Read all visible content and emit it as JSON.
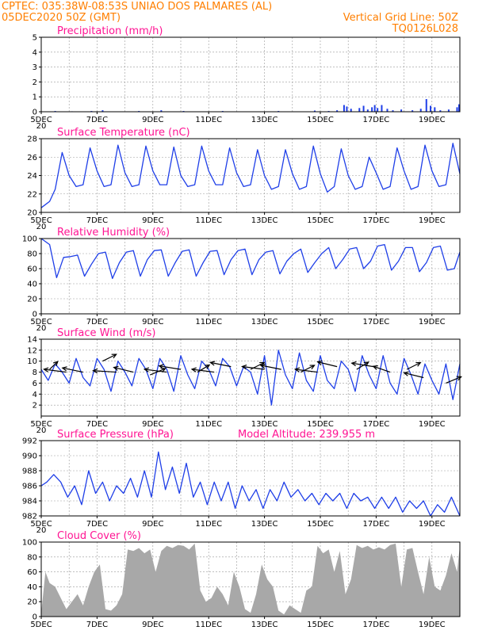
{
  "header": {
    "line1_left": "CPTEC:   035:38W-08:53S   UNIAO DOS PALMARES (AL)",
    "line2_left": "05DEC2020 50Z (GMT)",
    "line2_right": "Vertical Grid Line: 50Z",
    "line3_right": "TQ0126L028"
  },
  "colors": {
    "header": "#ff7f00",
    "panel_title": "#ff1493",
    "series": "#1f3fe8",
    "cloud": "#a8a8a8",
    "wind_arrow": "#000000"
  },
  "x_axis": {
    "day_start": 5,
    "day_end": 20,
    "tick_labels": [
      {
        "day": 5,
        "label": "5DEC"
      },
      {
        "day": 7,
        "label": "7DEC"
      },
      {
        "day": 9,
        "label": "9DEC"
      },
      {
        "day": 11,
        "label": "11DEC"
      },
      {
        "day": 13,
        "label": "13DEC"
      },
      {
        "day": 15,
        "label": "15DEC"
      },
      {
        "day": 17,
        "label": "17DEC"
      },
      {
        "day": 19,
        "label": "19DEC"
      }
    ],
    "year_stub": "20"
  },
  "chart_data": [
    {
      "type": "bar",
      "id": "precip",
      "title": "Precipitation  (mm/h)",
      "ylim": [
        0,
        5
      ],
      "yticks": [
        0,
        1,
        2,
        3,
        4,
        5
      ],
      "grid": true,
      "x_day": [
        5.5,
        6.1,
        6.8,
        7.2,
        8.5,
        9.3,
        10.1,
        11.5,
        13.5,
        14.8,
        15.3,
        15.6,
        15.85,
        15.95,
        16.1,
        16.4,
        16.55,
        16.7,
        16.85,
        16.95,
        17.05,
        17.2,
        17.4,
        17.6,
        17.9,
        18.3,
        18.6,
        18.8,
        18.95,
        19.1,
        19.3,
        19.6,
        19.9,
        19.97
      ],
      "values": [
        0.05,
        0.03,
        0.05,
        0.1,
        0.05,
        0.1,
        0.05,
        0.05,
        0.05,
        0.08,
        0.05,
        0.1,
        0.45,
        0.35,
        0.2,
        0.25,
        0.4,
        0.15,
        0.3,
        0.45,
        0.25,
        0.45,
        0.2,
        0.1,
        0.15,
        0.1,
        0.2,
        0.85,
        0.4,
        0.3,
        0.1,
        0.15,
        0.3,
        0.5
      ]
    },
    {
      "type": "line",
      "id": "temperature",
      "title": "Surface Temperature (nC)",
      "ylim": [
        20,
        28
      ],
      "yticks": [
        20,
        22,
        24,
        26,
        28
      ],
      "grid": true,
      "x_day": [
        5.0,
        5.3,
        5.5,
        5.75,
        6.0,
        6.25,
        6.5,
        6.75,
        7.0,
        7.25,
        7.5,
        7.75,
        8.0,
        8.25,
        8.5,
        8.75,
        9.0,
        9.25,
        9.5,
        9.75,
        10.0,
        10.25,
        10.5,
        10.75,
        11.0,
        11.25,
        11.5,
        11.75,
        12.0,
        12.25,
        12.5,
        12.75,
        13.0,
        13.25,
        13.5,
        13.75,
        14.0,
        14.25,
        14.5,
        14.75,
        15.0,
        15.25,
        15.5,
        15.75,
        16.0,
        16.25,
        16.5,
        16.75,
        17.0,
        17.25,
        17.5,
        17.75,
        18.0,
        18.25,
        18.5,
        18.75,
        19.0,
        19.25,
        19.5,
        19.75,
        20.0
      ],
      "values": [
        20.5,
        21.2,
        22.5,
        26.5,
        24.0,
        22.8,
        23.0,
        27.0,
        24.5,
        22.8,
        23.0,
        27.3,
        24.3,
        22.8,
        23.0,
        27.2,
        24.5,
        23.0,
        23.0,
        27.1,
        24.0,
        22.8,
        23.0,
        27.2,
        24.5,
        23.0,
        23.0,
        27.0,
        24.3,
        22.8,
        23.0,
        26.8,
        24.0,
        22.5,
        22.8,
        26.8,
        24.2,
        22.5,
        22.8,
        27.2,
        24.2,
        22.2,
        22.8,
        26.9,
        24.0,
        22.5,
        22.8,
        26.0,
        24.3,
        22.5,
        22.8,
        27.0,
        24.5,
        22.5,
        22.8,
        27.3,
        24.5,
        22.8,
        23.0,
        27.5,
        24.2
      ]
    },
    {
      "type": "line",
      "id": "humidity",
      "title": "Relative Humidity (%)",
      "ylim": [
        0,
        100
      ],
      "yticks": [
        0,
        20,
        40,
        60,
        80,
        100
      ],
      "grid": true,
      "x_day": [
        5.0,
        5.3,
        5.55,
        5.8,
        6.05,
        6.3,
        6.55,
        6.8,
        7.05,
        7.3,
        7.55,
        7.8,
        8.05,
        8.3,
        8.55,
        8.8,
        9.05,
        9.3,
        9.55,
        9.8,
        10.05,
        10.3,
        10.55,
        10.8,
        11.05,
        11.3,
        11.55,
        11.8,
        12.05,
        12.3,
        12.55,
        12.8,
        13.05,
        13.3,
        13.55,
        13.8,
        14.05,
        14.3,
        14.55,
        14.8,
        15.05,
        15.3,
        15.55,
        15.8,
        16.05,
        16.3,
        16.55,
        16.8,
        17.05,
        17.3,
        17.55,
        17.8,
        18.05,
        18.3,
        18.55,
        18.8,
        19.05,
        19.3,
        19.55,
        19.8,
        20.0
      ],
      "values": [
        100,
        92,
        48,
        75,
        76,
        78,
        50,
        66,
        80,
        82,
        47,
        68,
        82,
        84,
        50,
        72,
        84,
        85,
        50,
        68,
        83,
        85,
        50,
        68,
        83,
        84,
        52,
        72,
        84,
        86,
        52,
        72,
        82,
        84,
        53,
        70,
        80,
        86,
        55,
        68,
        80,
        88,
        60,
        72,
        86,
        88,
        60,
        70,
        90,
        92,
        58,
        70,
        88,
        88,
        56,
        68,
        88,
        90,
        58,
        60,
        82
      ]
    },
    {
      "type": "line",
      "id": "wind",
      "title": "Surface Wind  (m/s)",
      "ylim": [
        0,
        14
      ],
      "yticks": [
        2,
        4,
        6,
        8,
        10,
        12,
        14
      ],
      "grid": true,
      "x_day": [
        5.0,
        5.25,
        5.5,
        5.75,
        6.0,
        6.25,
        6.5,
        6.75,
        7.0,
        7.25,
        7.5,
        7.75,
        8.0,
        8.25,
        8.5,
        8.75,
        9.0,
        9.25,
        9.5,
        9.75,
        10.0,
        10.25,
        10.5,
        10.75,
        11.0,
        11.25,
        11.5,
        11.75,
        12.0,
        12.25,
        12.5,
        12.75,
        13.0,
        13.25,
        13.5,
        13.75,
        14.0,
        14.25,
        14.5,
        14.75,
        15.0,
        15.25,
        15.5,
        15.75,
        16.0,
        16.25,
        16.5,
        16.75,
        17.0,
        17.25,
        17.5,
        17.75,
        18.0,
        18.25,
        18.5,
        18.75,
        19.0,
        19.25,
        19.5,
        19.75,
        20.0
      ],
      "values": [
        8.5,
        6.5,
        9.5,
        8.0,
        6.0,
        10.5,
        7.0,
        5.5,
        10.5,
        8.5,
        4.5,
        10.0,
        8.0,
        5.5,
        10.5,
        8.5,
        5.0,
        10.5,
        8.5,
        4.5,
        11.0,
        7.5,
        5.0,
        10.0,
        8.5,
        5.5,
        10.5,
        9.0,
        5.5,
        9.0,
        8.0,
        4.0,
        11.0,
        2.0,
        12.0,
        7.5,
        5.0,
        11.5,
        6.5,
        4.5,
        11.0,
        6.5,
        5.0,
        10.0,
        8.5,
        4.5,
        11.0,
        7.5,
        5.0,
        11.0,
        6.0,
        4.0,
        10.5,
        7.5,
        4.0,
        9.5,
        6.5,
        4.0,
        9.5,
        3.0,
        9.5
      ],
      "arrows": [
        {
          "day": 5.3,
          "speed": 8.5,
          "dir": 200
        },
        {
          "day": 5.9,
          "speed": 8.0,
          "dir": 110
        },
        {
          "day": 6.5,
          "speed": 8.0,
          "dir": 120
        },
        {
          "day": 7.2,
          "speed": 10.0,
          "dir": 215
        },
        {
          "day": 7.7,
          "speed": 8.0,
          "dir": 100
        },
        {
          "day": 8.3,
          "speed": 8.0,
          "dir": 125
        },
        {
          "day": 8.9,
          "speed": 7.5,
          "dir": 220
        },
        {
          "day": 9.5,
          "speed": 8.0,
          "dir": 110
        },
        {
          "day": 10.0,
          "speed": 8.5,
          "dir": 115
        },
        {
          "day": 10.6,
          "speed": 8.0,
          "dir": 210
        },
        {
          "day": 11.2,
          "speed": 8.0,
          "dir": 110
        },
        {
          "day": 11.8,
          "speed": 9.0,
          "dir": 120
        },
        {
          "day": 12.5,
          "speed": 8.5,
          "dir": 215
        },
        {
          "day": 13.0,
          "speed": 8.5,
          "dir": 110
        },
        {
          "day": 13.6,
          "speed": 8.5,
          "dir": 120
        },
        {
          "day": 14.3,
          "speed": 8.0,
          "dir": 215
        },
        {
          "day": 14.9,
          "speed": 8.0,
          "dir": 110
        },
        {
          "day": 15.6,
          "speed": 9.0,
          "dir": 125
        },
        {
          "day": 16.3,
          "speed": 8.5,
          "dir": 210
        },
        {
          "day": 16.9,
          "speed": 9.0,
          "dir": 115
        },
        {
          "day": 17.5,
          "speed": 8.0,
          "dir": 135
        },
        {
          "day": 18.1,
          "speed": 8.5,
          "dir": 215
        },
        {
          "day": 18.7,
          "speed": 7.0,
          "dir": 125
        },
        {
          "day": 19.5,
          "speed": 6.0,
          "dir": 220
        }
      ]
    },
    {
      "type": "line",
      "id": "pressure",
      "title": "Surface Pressure (hPa)",
      "subtitle": "Model Altitude: 239.955  m",
      "ylim": [
        982,
        992
      ],
      "yticks": [
        982,
        984,
        986,
        988,
        990,
        992
      ],
      "grid": true,
      "x_day": [
        5.0,
        5.2,
        5.45,
        5.7,
        5.95,
        6.2,
        6.45,
        6.7,
        6.95,
        7.2,
        7.45,
        7.7,
        7.95,
        8.2,
        8.45,
        8.7,
        8.95,
        9.2,
        9.45,
        9.7,
        9.95,
        10.2,
        10.45,
        10.7,
        10.95,
        11.2,
        11.45,
        11.7,
        11.95,
        12.2,
        12.45,
        12.7,
        12.95,
        13.2,
        13.45,
        13.7,
        13.95,
        14.2,
        14.45,
        14.7,
        14.95,
        15.2,
        15.45,
        15.7,
        15.95,
        16.2,
        16.45,
        16.7,
        16.95,
        17.2,
        17.45,
        17.7,
        17.95,
        18.2,
        18.45,
        18.7,
        18.95,
        19.2,
        19.45,
        19.7,
        20.0
      ],
      "values": [
        986.0,
        986.5,
        987.5,
        986.5,
        984.5,
        986.0,
        983.5,
        988.0,
        985.0,
        986.5,
        984.0,
        986.0,
        985.0,
        987.0,
        984.5,
        988.0,
        984.5,
        990.5,
        985.5,
        988.5,
        985.0,
        989.0,
        984.5,
        986.5,
        983.5,
        986.5,
        984.0,
        986.5,
        983.0,
        986.0,
        984.0,
        985.5,
        983.0,
        985.5,
        984.0,
        986.5,
        984.5,
        985.5,
        984.0,
        985.0,
        983.5,
        985.0,
        984.0,
        985.0,
        983.0,
        985.0,
        984.0,
        984.5,
        983.0,
        984.5,
        983.0,
        984.5,
        982.5,
        984.0,
        983.0,
        984.0,
        982.0,
        983.5,
        982.5,
        984.5,
        982.0
      ]
    },
    {
      "type": "area",
      "id": "cloud",
      "title": "Cloud Cover (%)",
      "ylim": [
        0,
        100
      ],
      "yticks": [
        0,
        20,
        40,
        60,
        80,
        100
      ],
      "grid": true,
      "x_day": [
        5.0,
        5.15,
        5.3,
        5.5,
        5.7,
        5.9,
        6.1,
        6.3,
        6.5,
        6.7,
        6.9,
        7.1,
        7.3,
        7.5,
        7.7,
        7.9,
        8.1,
        8.3,
        8.5,
        8.7,
        8.9,
        9.1,
        9.3,
        9.5,
        9.7,
        9.9,
        10.1,
        10.3,
        10.5,
        10.7,
        10.9,
        11.1,
        11.3,
        11.5,
        11.7,
        11.9,
        12.1,
        12.3,
        12.5,
        12.7,
        12.9,
        13.1,
        13.3,
        13.5,
        13.7,
        13.9,
        14.1,
        14.3,
        14.5,
        14.7,
        14.9,
        15.1,
        15.3,
        15.5,
        15.7,
        15.9,
        16.1,
        16.3,
        16.5,
        16.7,
        16.9,
        17.1,
        17.3,
        17.5,
        17.7,
        17.9,
        18.1,
        18.3,
        18.5,
        18.7,
        18.9,
        19.1,
        19.3,
        19.5,
        19.7,
        19.9,
        20.0
      ],
      "values": [
        5,
        60,
        45,
        40,
        25,
        10,
        20,
        30,
        15,
        40,
        60,
        70,
        10,
        8,
        15,
        30,
        90,
        88,
        92,
        85,
        90,
        60,
        88,
        95,
        92,
        96,
        95,
        90,
        98,
        35,
        20,
        25,
        40,
        30,
        15,
        60,
        40,
        10,
        5,
        30,
        70,
        50,
        40,
        8,
        3,
        15,
        10,
        5,
        35,
        40,
        95,
        85,
        90,
        60,
        88,
        30,
        50,
        96,
        92,
        95,
        90,
        93,
        90,
        96,
        98,
        40,
        90,
        92,
        60,
        30,
        80,
        40,
        35,
        55,
        85,
        60,
        95
      ]
    }
  ]
}
